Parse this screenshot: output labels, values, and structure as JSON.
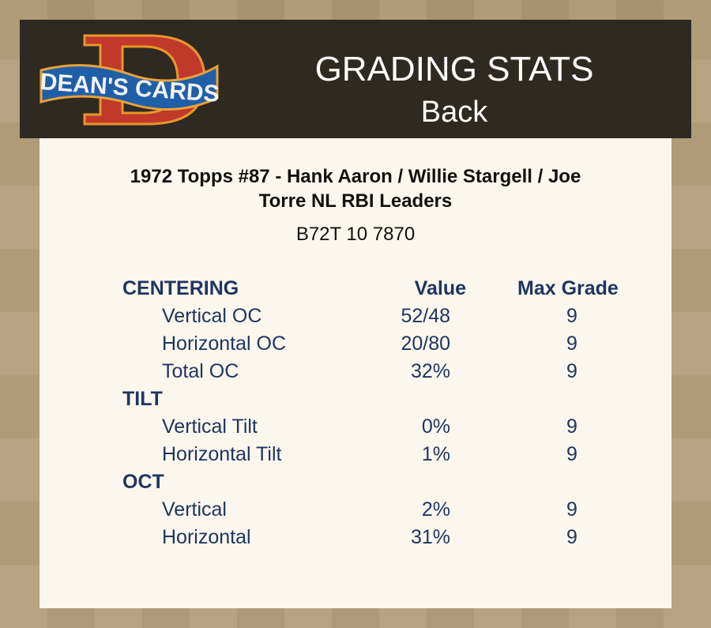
{
  "header": {
    "logo_text": "DEAN'S CARDS",
    "title": "GRADING STATS",
    "subtitle": "Back"
  },
  "card": {
    "title_line1": "1972 Topps #87  -  Hank Aaron / Willie Stargell / Joe",
    "title_line2": "Torre NL RBI Leaders",
    "cert": "B72T 10 7870"
  },
  "columns": {
    "value": "Value",
    "max": "Max Grade"
  },
  "sections": [
    {
      "name": "CENTERING",
      "rows": [
        {
          "label": "Vertical OC",
          "value": "52/48",
          "max": "9"
        },
        {
          "label": "Horizontal OC",
          "value": "20/80",
          "max": "9"
        },
        {
          "label": "Total OC",
          "value": "32%",
          "max": "9"
        }
      ]
    },
    {
      "name": "TILT",
      "rows": [
        {
          "label": "Vertical Tilt",
          "value": "0%",
          "max": "9"
        },
        {
          "label": "Horizontal Tilt",
          "value": "1%",
          "max": "9"
        }
      ]
    },
    {
      "name": "OCT",
      "rows": [
        {
          "label": "Vertical",
          "value": "2%",
          "max": "9"
        },
        {
          "label": "Horizontal",
          "value": "31%",
          "max": "9"
        }
      ]
    }
  ],
  "colors": {
    "text": "#1f3560",
    "header_bg": "#2e2921",
    "panel": "#fcf7ee",
    "background": "#b29c78"
  }
}
